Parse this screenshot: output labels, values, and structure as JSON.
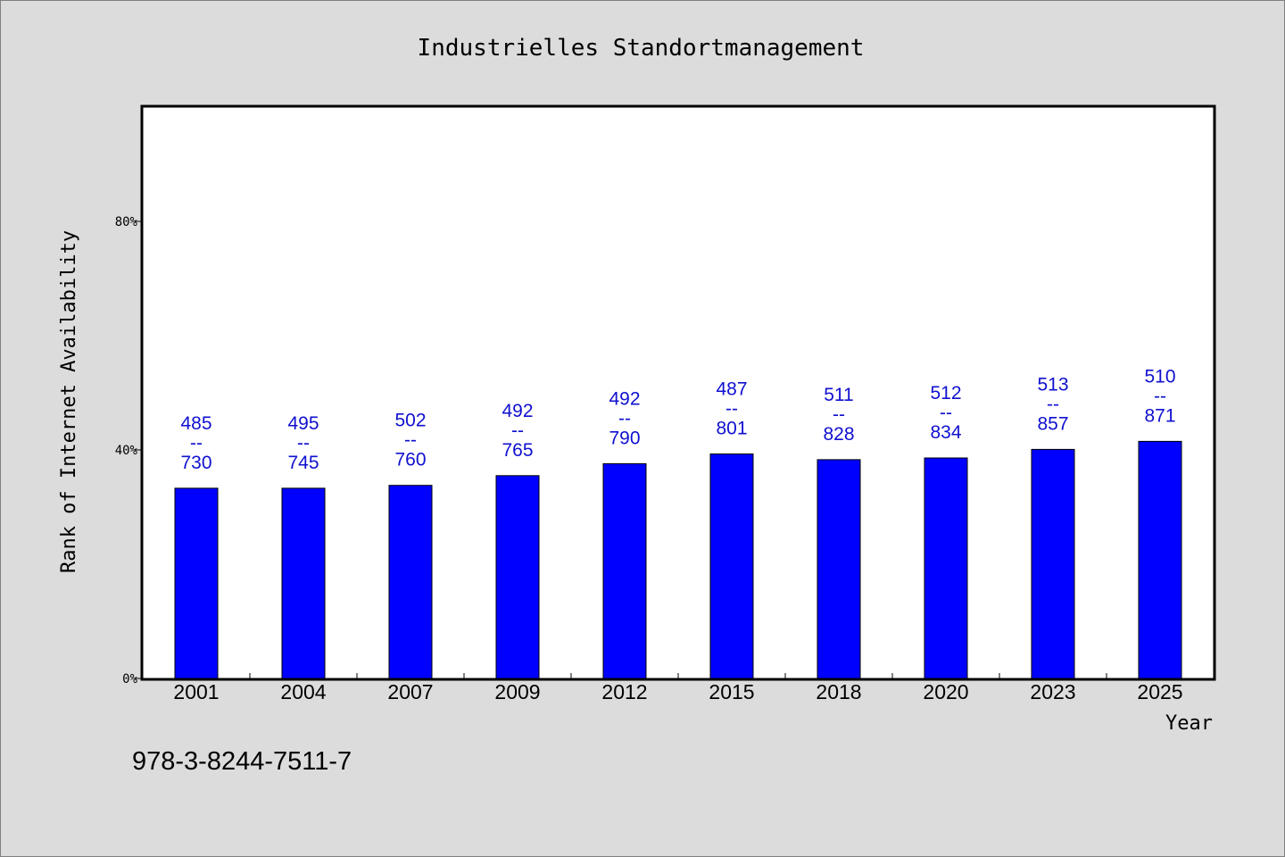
{
  "chart_data": {
    "type": "bar",
    "title": "Industrielles Standortmanagement",
    "xlabel": "Year",
    "ylabel": "Rank of Internet Availability",
    "categories": [
      "2001",
      "2004",
      "2007",
      "2009",
      "2012",
      "2015",
      "2018",
      "2020",
      "2023",
      "2025"
    ],
    "series": [
      {
        "values": [
          0.333,
          0.333,
          0.338,
          0.355,
          0.376,
          0.393,
          0.383,
          0.386,
          0.401,
          0.415
        ],
        "color": "#0000ff",
        "label_top": [
          "485",
          "495",
          "502",
          "492",
          "492",
          "487",
          "511",
          "512",
          "513",
          "510"
        ],
        "label_sep": "--",
        "label_bottom": [
          "730",
          "745",
          "760",
          "765",
          "790",
          "801",
          "828",
          "834",
          "857",
          "871"
        ]
      }
    ],
    "ylim": [
      0,
      1.0
    ],
    "yticks": [
      0,
      0.4,
      0.8
    ],
    "ytick_labels": [
      "0%",
      "40%",
      "80%"
    ],
    "grid": false,
    "legend": "none",
    "label_color": "#1010d0"
  },
  "footnote": "978-3-8244-7511-7"
}
